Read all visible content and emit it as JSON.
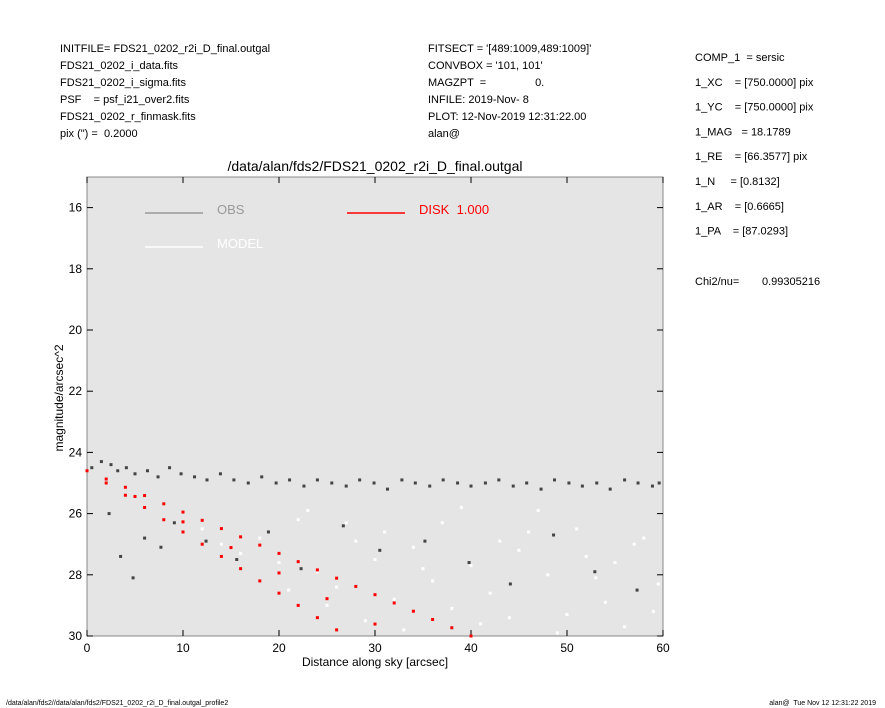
{
  "header": {
    "left": [
      "INITFILE= FDS21_0202_r2i_D_final.outgal",
      "FDS21_0202_i_data.fits",
      "FDS21_0202_i_sigma.fits",
      "PSF    = psf_i21_over2.fits",
      "FDS21_0202_r_finmask.fits",
      "pix (\") =  0.2000"
    ],
    "middle": [
      "FITSECT = '[489:1009,489:1009]'",
      "CONVBOX = '101, 101'",
      "MAGZPT  =                0.",
      "INFILE: 2019-Nov- 8",
      "PLOT: 12-Nov-2019 12:31:22.00",
      "alan@"
    ],
    "right": [
      "COMP_1  = sersic",
      "1_XC    = [750.0000] pix",
      "1_YC    = [750.0000] pix",
      "1_MAG   = 18.1789",
      "1_RE    = [66.3577] pix",
      "1_N     = [0.8132]",
      "1_AR    = [0.6665]",
      "1_PA    = [87.0293]"
    ],
    "chi2_label": "Chi2/nu=",
    "chi2_value": "0.99305216"
  },
  "footer": {
    "left": "/data/alan/fds2//data/alan/fds2/FDS21_0202_r2i_D_final.outgal_profile2",
    "right": "alan@  Tue Nov 12 12:31:22 2019"
  },
  "chart_data": {
    "type": "scatter",
    "title": "/data/alan/fds2/FDS21_0202_r2i_D_final.outgal",
    "xlabel": "Distance along sky [arcsec]",
    "ylabel": "magnitude/arcsec^2",
    "xlim": [
      0,
      60
    ],
    "ylim": [
      15,
      30
    ],
    "y_inverted": true,
    "xticks": [
      0,
      10,
      20,
      30,
      40,
      50,
      60
    ],
    "yticks": [
      16,
      18,
      20,
      22,
      24,
      26,
      28,
      30
    ],
    "background": "#e5e5e5",
    "series": [
      {
        "name": "OBS",
        "color": "#444444",
        "legend_color": "#999999",
        "x": [
          0.5,
          1.5,
          2.5,
          3.2,
          4.1,
          5.0,
          6.3,
          7.4,
          8.6,
          9.8,
          11.2,
          12.5,
          13.9,
          15.3,
          16.8,
          18.2,
          19.7,
          21.1,
          22.6,
          24.0,
          25.5,
          27.0,
          28.4,
          29.9,
          31.3,
          32.8,
          34.2,
          35.7,
          37.1,
          38.6,
          40.0,
          41.5,
          42.9,
          44.4,
          45.8,
          47.3,
          48.7,
          50.2,
          51.6,
          53.1,
          54.5,
          56.0,
          57.4,
          58.9,
          59.6,
          2.3,
          3.5,
          4.8,
          6.0,
          7.7,
          9.1,
          12.4,
          15.6,
          18.9,
          22.3,
          26.7,
          30.5,
          35.2,
          39.8,
          44.1,
          48.6,
          52.9,
          57.3
        ],
        "values": [
          24.5,
          24.3,
          24.4,
          24.6,
          24.5,
          24.7,
          24.6,
          24.8,
          24.5,
          24.7,
          24.8,
          24.9,
          24.7,
          24.9,
          25.0,
          24.8,
          25.0,
          24.9,
          25.1,
          24.9,
          25.0,
          25.1,
          24.9,
          25.0,
          25.2,
          24.9,
          25.0,
          25.1,
          24.9,
          25.0,
          25.1,
          25.0,
          24.9,
          25.1,
          25.0,
          25.2,
          24.9,
          25.0,
          25.1,
          25.0,
          25.2,
          24.9,
          25.0,
          25.1,
          25.0,
          26.0,
          27.4,
          28.1,
          26.8,
          27.1,
          26.3,
          26.9,
          27.5,
          26.6,
          27.8,
          26.4,
          27.2,
          26.9,
          27.6,
          28.3,
          26.7,
          27.9,
          28.5
        ]
      },
      {
        "name": "MODEL",
        "color": "#ffffff",
        "legend_color": "#ffffff",
        "x": [
          12,
          14,
          16,
          18,
          20,
          22,
          24,
          26,
          28,
          30,
          32,
          34,
          36,
          38,
          40,
          42,
          44,
          46,
          48,
          50,
          52,
          54,
          56,
          58,
          59.5,
          21,
          25,
          29,
          33,
          37,
          41,
          45,
          49,
          53,
          57,
          23,
          27,
          31,
          35,
          39,
          43,
          47,
          51,
          55,
          59
        ],
        "values": [
          26.5,
          27.0,
          27.3,
          26.8,
          27.6,
          26.2,
          27.9,
          28.4,
          26.9,
          27.5,
          28.8,
          27.1,
          28.2,
          29.1,
          27.7,
          28.6,
          29.4,
          26.6,
          28.0,
          29.3,
          27.4,
          28.9,
          29.7,
          26.8,
          28.3,
          28.5,
          29.0,
          29.5,
          29.8,
          26.3,
          29.6,
          27.2,
          29.9,
          28.1,
          27.0,
          25.9,
          26.3,
          26.6,
          27.8,
          25.8,
          26.9,
          25.9,
          26.5,
          27.6,
          29.2
        ]
      },
      {
        "name": "DISK  1.000",
        "color": "#ff0000",
        "legend_color": "#ff0000",
        "x": [
          0,
          2,
          4,
          6,
          8,
          10,
          12,
          14,
          16,
          18,
          20,
          22,
          24,
          26,
          2,
          4,
          6,
          8,
          10,
          12,
          14,
          16,
          18,
          20,
          22,
          24,
          26,
          28,
          30,
          32,
          34,
          36,
          38,
          40,
          5,
          10,
          15,
          20,
          25,
          30
        ],
        "values": [
          24.6,
          25.0,
          25.4,
          25.8,
          26.2,
          26.6,
          27.0,
          27.4,
          27.8,
          28.2,
          28.6,
          29.0,
          29.4,
          29.8,
          24.87,
          25.14,
          25.41,
          25.68,
          25.95,
          26.22,
          26.49,
          26.76,
          27.03,
          27.3,
          27.57,
          27.84,
          28.11,
          28.38,
          28.65,
          28.92,
          29.19,
          29.46,
          29.73,
          30.0,
          25.44,
          26.27,
          27.11,
          27.94,
          28.78,
          29.61
        ]
      }
    ]
  }
}
